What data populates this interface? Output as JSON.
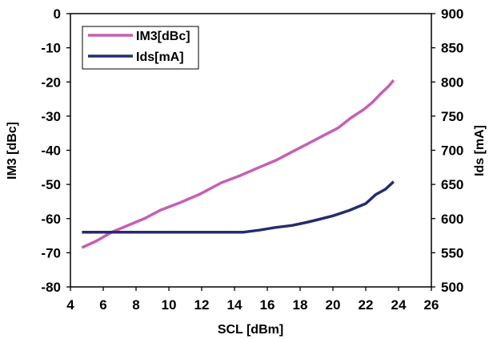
{
  "chart_data": {
    "type": "line",
    "xlabel": "SCL [dBm]",
    "ylabel_left": "IM3 [dBc]",
    "ylabel_right": "Ids [mA]",
    "xlim": [
      4,
      26
    ],
    "ylim_left": [
      -80,
      0
    ],
    "ylim_right": [
      500,
      900
    ],
    "x_ticks": [
      "4",
      "6",
      "8",
      "10",
      "12",
      "14",
      "16",
      "18",
      "20",
      "22",
      "24",
      "26"
    ],
    "y_left_ticks": [
      "0",
      "-10",
      "-20",
      "-30",
      "-40",
      "-50",
      "-60",
      "-70",
      "-80"
    ],
    "y_right_ticks": [
      "900",
      "850",
      "800",
      "750",
      "700",
      "650",
      "600",
      "550",
      "500"
    ],
    "grid": false,
    "legend_position": "top-left",
    "series": [
      {
        "name": "IM3[dBc]",
        "axis": "left",
        "color": "#c65fb4",
        "points": [
          [
            4.7,
            -68.5
          ],
          [
            5.6,
            -66.5
          ],
          [
            6.5,
            -64
          ],
          [
            7.5,
            -62
          ],
          [
            8.5,
            -60
          ],
          [
            9.5,
            -57.5
          ],
          [
            10.7,
            -55.3
          ],
          [
            11.9,
            -52.8
          ],
          [
            13.2,
            -49.5
          ],
          [
            14.3,
            -47.5
          ],
          [
            15.5,
            -45
          ],
          [
            16.5,
            -43
          ],
          [
            17.5,
            -40.5
          ],
          [
            18.5,
            -38
          ],
          [
            19.3,
            -36
          ],
          [
            20.3,
            -33.5
          ],
          [
            21.1,
            -30.5
          ],
          [
            21.9,
            -28
          ],
          [
            22.4,
            -26
          ],
          [
            22.9,
            -23.5
          ],
          [
            23.4,
            -21.2
          ],
          [
            23.7,
            -19.5
          ]
        ]
      },
      {
        "name": "Ids[mA]",
        "axis": "right",
        "color": "#252c6e",
        "points": [
          [
            4.7,
            580
          ],
          [
            6,
            580
          ],
          [
            8,
            580
          ],
          [
            10,
            580
          ],
          [
            12,
            580
          ],
          [
            13.5,
            580
          ],
          [
            14.5,
            580
          ],
          [
            15.5,
            583
          ],
          [
            16.5,
            587
          ],
          [
            17.5,
            590
          ],
          [
            18.3,
            594
          ],
          [
            19,
            598
          ],
          [
            20,
            604
          ],
          [
            21,
            612
          ],
          [
            22,
            622
          ],
          [
            22.6,
            635
          ],
          [
            23.2,
            643
          ],
          [
            23.7,
            654
          ]
        ]
      }
    ]
  }
}
